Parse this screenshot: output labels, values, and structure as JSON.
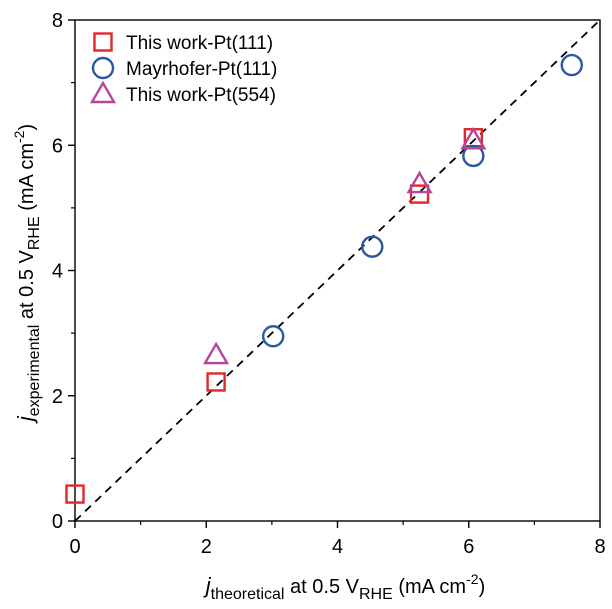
{
  "chart_data": {
    "type": "scatter",
    "title": "",
    "xlim": [
      0,
      8
    ],
    "ylim": [
      0,
      8
    ],
    "x_ticks": [
      "0",
      "2",
      "4",
      "6",
      "8"
    ],
    "y_ticks": [
      "0",
      "2",
      "4",
      "6",
      "8"
    ],
    "x_tick_values": [
      0,
      2,
      4,
      6,
      8
    ],
    "y_tick_values": [
      0,
      2,
      4,
      6,
      8
    ],
    "xlabel": {
      "italic": "j",
      "sub1": "theoretical",
      "mid": " at 0.5 V",
      "sub2": "RHE",
      "unit": " (mA cm",
      "sup": "-2",
      "end": ")"
    },
    "ylabel": {
      "italic": "j",
      "sub1": "experimental",
      "mid": " at 0.5 V",
      "sub2": "RHE",
      "unit": " (mA cm",
      "sup": "-2",
      "end": ")"
    },
    "grid": false,
    "legend_position": "top-left",
    "reference_line": {
      "style": "dashed",
      "color": "#000000",
      "from": [
        0,
        0
      ],
      "to": [
        8,
        8
      ]
    },
    "series": [
      {
        "name": "This work-Pt(111)",
        "marker": "square",
        "color": "#e3262c",
        "points": [
          [
            0.0,
            0.43
          ],
          [
            2.15,
            2.22
          ],
          [
            5.25,
            5.22
          ],
          [
            6.07,
            6.12
          ]
        ]
      },
      {
        "name": "Mayrhofer-Pt(111)",
        "marker": "circle",
        "color": "#2b57a5",
        "points": [
          [
            3.02,
            2.95
          ],
          [
            4.53,
            4.38
          ],
          [
            6.07,
            5.83
          ],
          [
            7.57,
            7.28
          ]
        ]
      },
      {
        "name": "This work-Pt(554)",
        "marker": "triangle",
        "color": "#b5469b",
        "points": [
          [
            2.15,
            2.65
          ],
          [
            5.25,
            5.38
          ],
          [
            6.07,
            6.08
          ]
        ]
      }
    ]
  }
}
